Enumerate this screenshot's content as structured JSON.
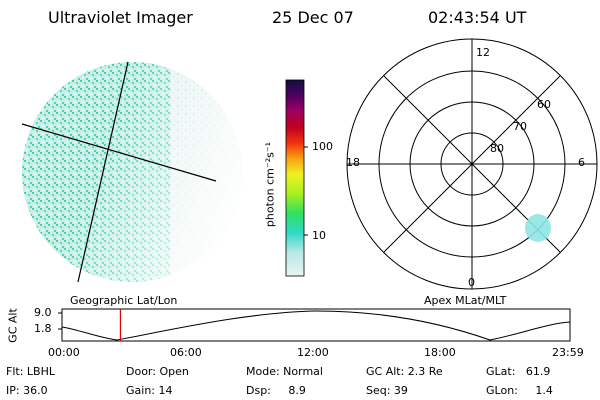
{
  "header": {
    "title": "Ultraviolet Imager",
    "date": "25 Dec 07",
    "time": "02:43:54 UT"
  },
  "colorbar": {
    "label": "photon cm⁻²s⁻¹",
    "ticks": [
      "100",
      "10"
    ]
  },
  "polar_plot": {
    "mlt_labels": {
      "top": "12",
      "left": "18",
      "right": "6",
      "bottom": "0"
    },
    "lat_labels": [
      "60",
      "70",
      "80"
    ]
  },
  "projection_labels": {
    "left": "Geographic Lat/Lon",
    "right": "Apex MLat/MLT"
  },
  "altitude_plot": {
    "ylabel": "GC Alt",
    "y_ticks": [
      "9.0",
      "1.8"
    ],
    "x_ticks": [
      "00:00",
      "06:00",
      "12:00",
      "18:00",
      "23:59"
    ],
    "current_time_fraction": 0.115
  },
  "info": {
    "flt": "Flt: LBHL",
    "ip": "IP: 36.0",
    "door": "Door: Open",
    "gain": "Gain: 14",
    "mode": "Mode: Normal",
    "dsp": "Dsp:     8.9",
    "gcalt": "GC Alt: 2.3 Re",
    "seq": "Seq: 39",
    "glat": "GLat:   61.9",
    "glon": "GLon:     1.4"
  },
  "colors": {
    "marker": "#e00000",
    "aurora": "#39d9a8",
    "background": "#ffffff"
  }
}
